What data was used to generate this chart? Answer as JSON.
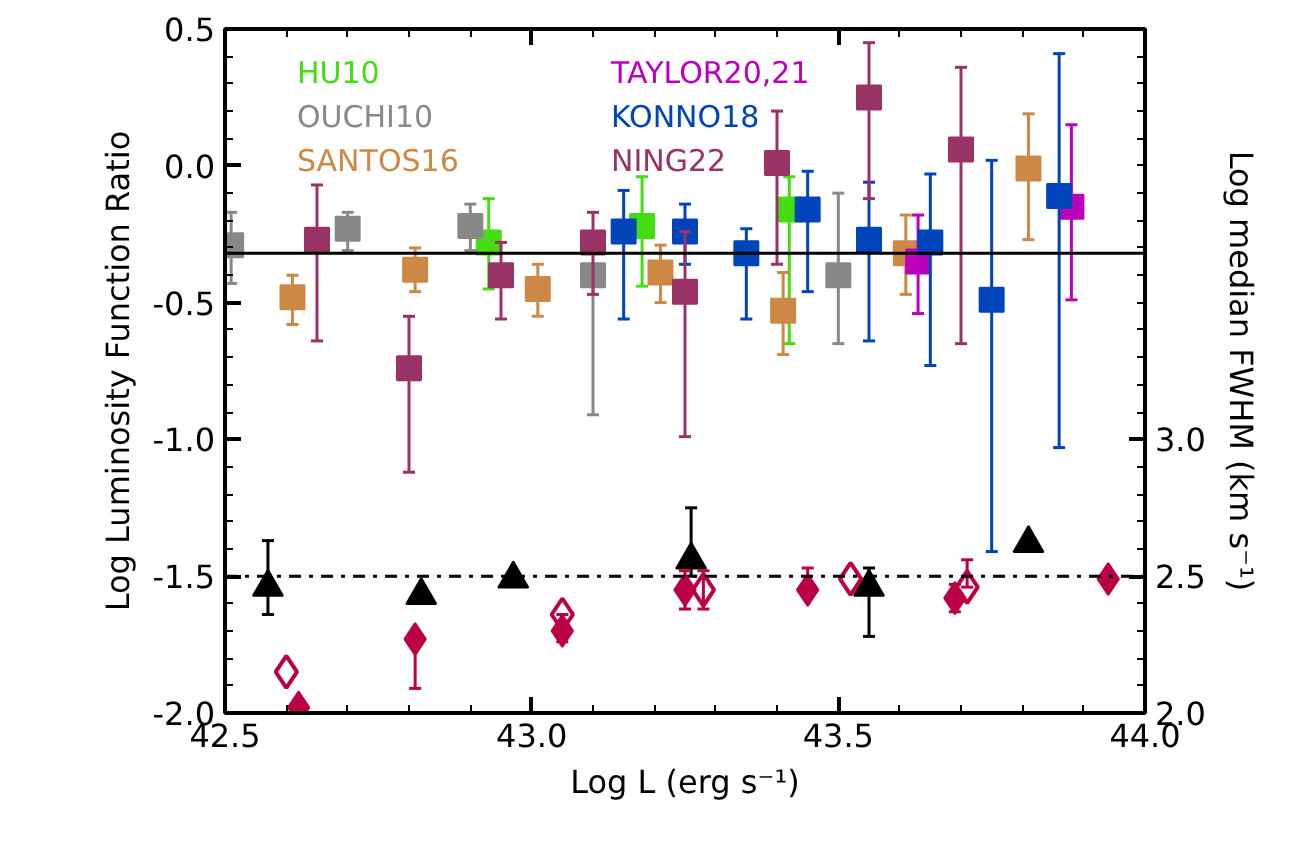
{
  "chart_data": {
    "type": "scatter",
    "xlabel": "Log L (erg s⁻¹)",
    "ylabel": "Log Luminosity Function Ratio",
    "y2label": "Log median FWHM (km s⁻¹)",
    "xlim": [
      42.5,
      44.0
    ],
    "xticks": [
      42.5,
      {
        "value": 43,
        "label": "43.0"
      },
      43.5,
      {
        "value": 44,
        "label": "44.0"
      }
    ],
    "ylim": [
      -2.0,
      0.5
    ],
    "yticks": [
      {
        "value": -2,
        "label": "-2.0"
      },
      -1.5,
      {
        "value": -1,
        "label": "-1.0"
      },
      -0.5,
      {
        "value": 0,
        "label": "0.0"
      },
      0.5
    ],
    "y2lim": [
      2.0,
      4.5
    ],
    "y2ticks": [
      {
        "value": 2,
        "label": "2.0"
      },
      2.5,
      {
        "value": 3,
        "label": "3.0"
      }
    ],
    "grid": false,
    "legend": "top",
    "ref_lines": [
      {
        "axis": "y",
        "value": -0.32,
        "line_style": "solid",
        "color": "#000000"
      },
      {
        "axis": "y2",
        "value": 2.5,
        "line_style": "dashdot",
        "color": "#000000"
      }
    ],
    "series": [
      {
        "name": "HU10",
        "color": "#44dd11",
        "marker": "square",
        "x": [
          42.93,
          43.18,
          43.42
        ],
        "values": [
          -0.28,
          -0.22,
          -0.16
        ],
        "errors": [
          [
            -0.45,
            -0.12
          ],
          [
            -0.44,
            -0.04
          ],
          [
            -0.65,
            -0.04
          ]
        ]
      },
      {
        "name": "OUCHI10",
        "color": "#888888",
        "marker": "square",
        "x": [
          42.51,
          42.7,
          42.9,
          43.1,
          43.5
        ],
        "values": [
          -0.29,
          -0.23,
          -0.22,
          -0.4,
          -0.4
        ],
        "errors": [
          [
            -0.43,
            -0.17
          ],
          [
            -0.31,
            -0.17
          ],
          [
            -0.31,
            -0.14
          ],
          [
            -0.91,
            -0.4
          ],
          [
            -0.65,
            -0.1
          ]
        ]
      },
      {
        "name": "SANTOS16",
        "color": "#cc8844",
        "marker": "square",
        "x": [
          42.61,
          42.81,
          43.01,
          43.21,
          43.41,
          43.61,
          43.81
        ],
        "values": [
          -0.48,
          -0.38,
          -0.45,
          -0.39,
          -0.53,
          -0.32,
          -0.01
        ],
        "errors": [
          [
            -0.58,
            -0.4
          ],
          [
            -0.46,
            -0.3
          ],
          [
            -0.55,
            -0.36
          ],
          [
            -0.5,
            -0.29
          ],
          [
            -0.69,
            -0.39
          ],
          [
            -0.47,
            -0.18
          ],
          [
            -0.27,
            0.19
          ]
        ]
      },
      {
        "name": "TAYLOR20,21",
        "color": "#bb00bb",
        "marker": "square",
        "x": [
          43.63,
          43.88
        ],
        "values": [
          -0.35,
          -0.15
        ],
        "errors": [
          [
            -0.54,
            -0.18
          ],
          [
            -0.49,
            0.15
          ]
        ]
      },
      {
        "name": "KONNO18",
        "color": "#0044bb",
        "marker": "square",
        "x": [
          43.15,
          43.25,
          43.35,
          43.45,
          43.55,
          43.65,
          43.75,
          43.86
        ],
        "values": [
          -0.24,
          -0.24,
          -0.32,
          -0.16,
          -0.27,
          -0.28,
          -0.49,
          -0.11
        ],
        "errors": [
          [
            -0.56,
            -0.09
          ],
          [
            -0.36,
            -0.14
          ],
          [
            -0.56,
            -0.23
          ],
          [
            -0.46,
            -0.02
          ],
          [
            -0.64,
            -0.06
          ],
          [
            -0.73,
            -0.03
          ],
          [
            -1.41,
            0.02
          ],
          [
            -1.03,
            0.41
          ]
        ]
      },
      {
        "name": "NING22",
        "color": "#993366",
        "marker": "square",
        "x": [
          42.65,
          42.8,
          42.95,
          43.1,
          43.25,
          43.4,
          43.55,
          43.7
        ],
        "values": [
          -0.27,
          -0.74,
          -0.4,
          -0.28,
          -0.46,
          0.01,
          0.25,
          0.06
        ],
        "errors": [
          [
            -0.64,
            -0.07
          ],
          [
            -1.12,
            -0.55
          ],
          [
            -0.56,
            -0.28
          ],
          [
            -0.47,
            -0.17
          ],
          [
            -0.99,
            -0.24
          ],
          [
            -0.36,
            0.2
          ],
          [
            -0.12,
            0.45
          ],
          [
            -0.65,
            0.36
          ]
        ]
      },
      {
        "color": "#000000",
        "marker": "triangle",
        "axis": "y2",
        "x": [
          42.57,
          42.82,
          42.97,
          43.26,
          43.55,
          43.81
        ],
        "values": [
          2.46,
          2.43,
          2.49,
          2.56,
          2.46,
          2.62
        ],
        "errors": [
          [
            2.36,
            2.63
          ],
          null,
          null,
          [
            2.5,
            2.75
          ],
          [
            2.28,
            2.53
          ],
          null
        ]
      },
      {
        "color": "#bb0044",
        "marker": "diamond",
        "axis": "y2",
        "x": [
          42.62,
          42.81,
          43.05,
          43.25,
          43.45,
          43.69,
          43.94
        ],
        "values": [
          2.02,
          2.27,
          2.3,
          2.45,
          2.45,
          2.42,
          2.49
        ],
        "errors": [
          null,
          [
            2.09,
            2.27
          ],
          [
            2.26,
            2.36
          ],
          [
            2.38,
            2.52
          ],
          [
            2.45,
            2.53
          ],
          [
            2.37,
            2.47
          ],
          null
        ]
      },
      {
        "color": "#bb0044",
        "marker": "diamond_open",
        "axis": "y2",
        "x": [
          42.6,
          43.05,
          43.28,
          43.52,
          43.71
        ],
        "values": [
          2.15,
          2.36,
          2.45,
          2.49,
          2.46
        ],
        "errors": [
          null,
          null,
          [
            2.38,
            2.52
          ],
          null,
          [
            2.46,
            2.56
          ]
        ]
      }
    ]
  }
}
